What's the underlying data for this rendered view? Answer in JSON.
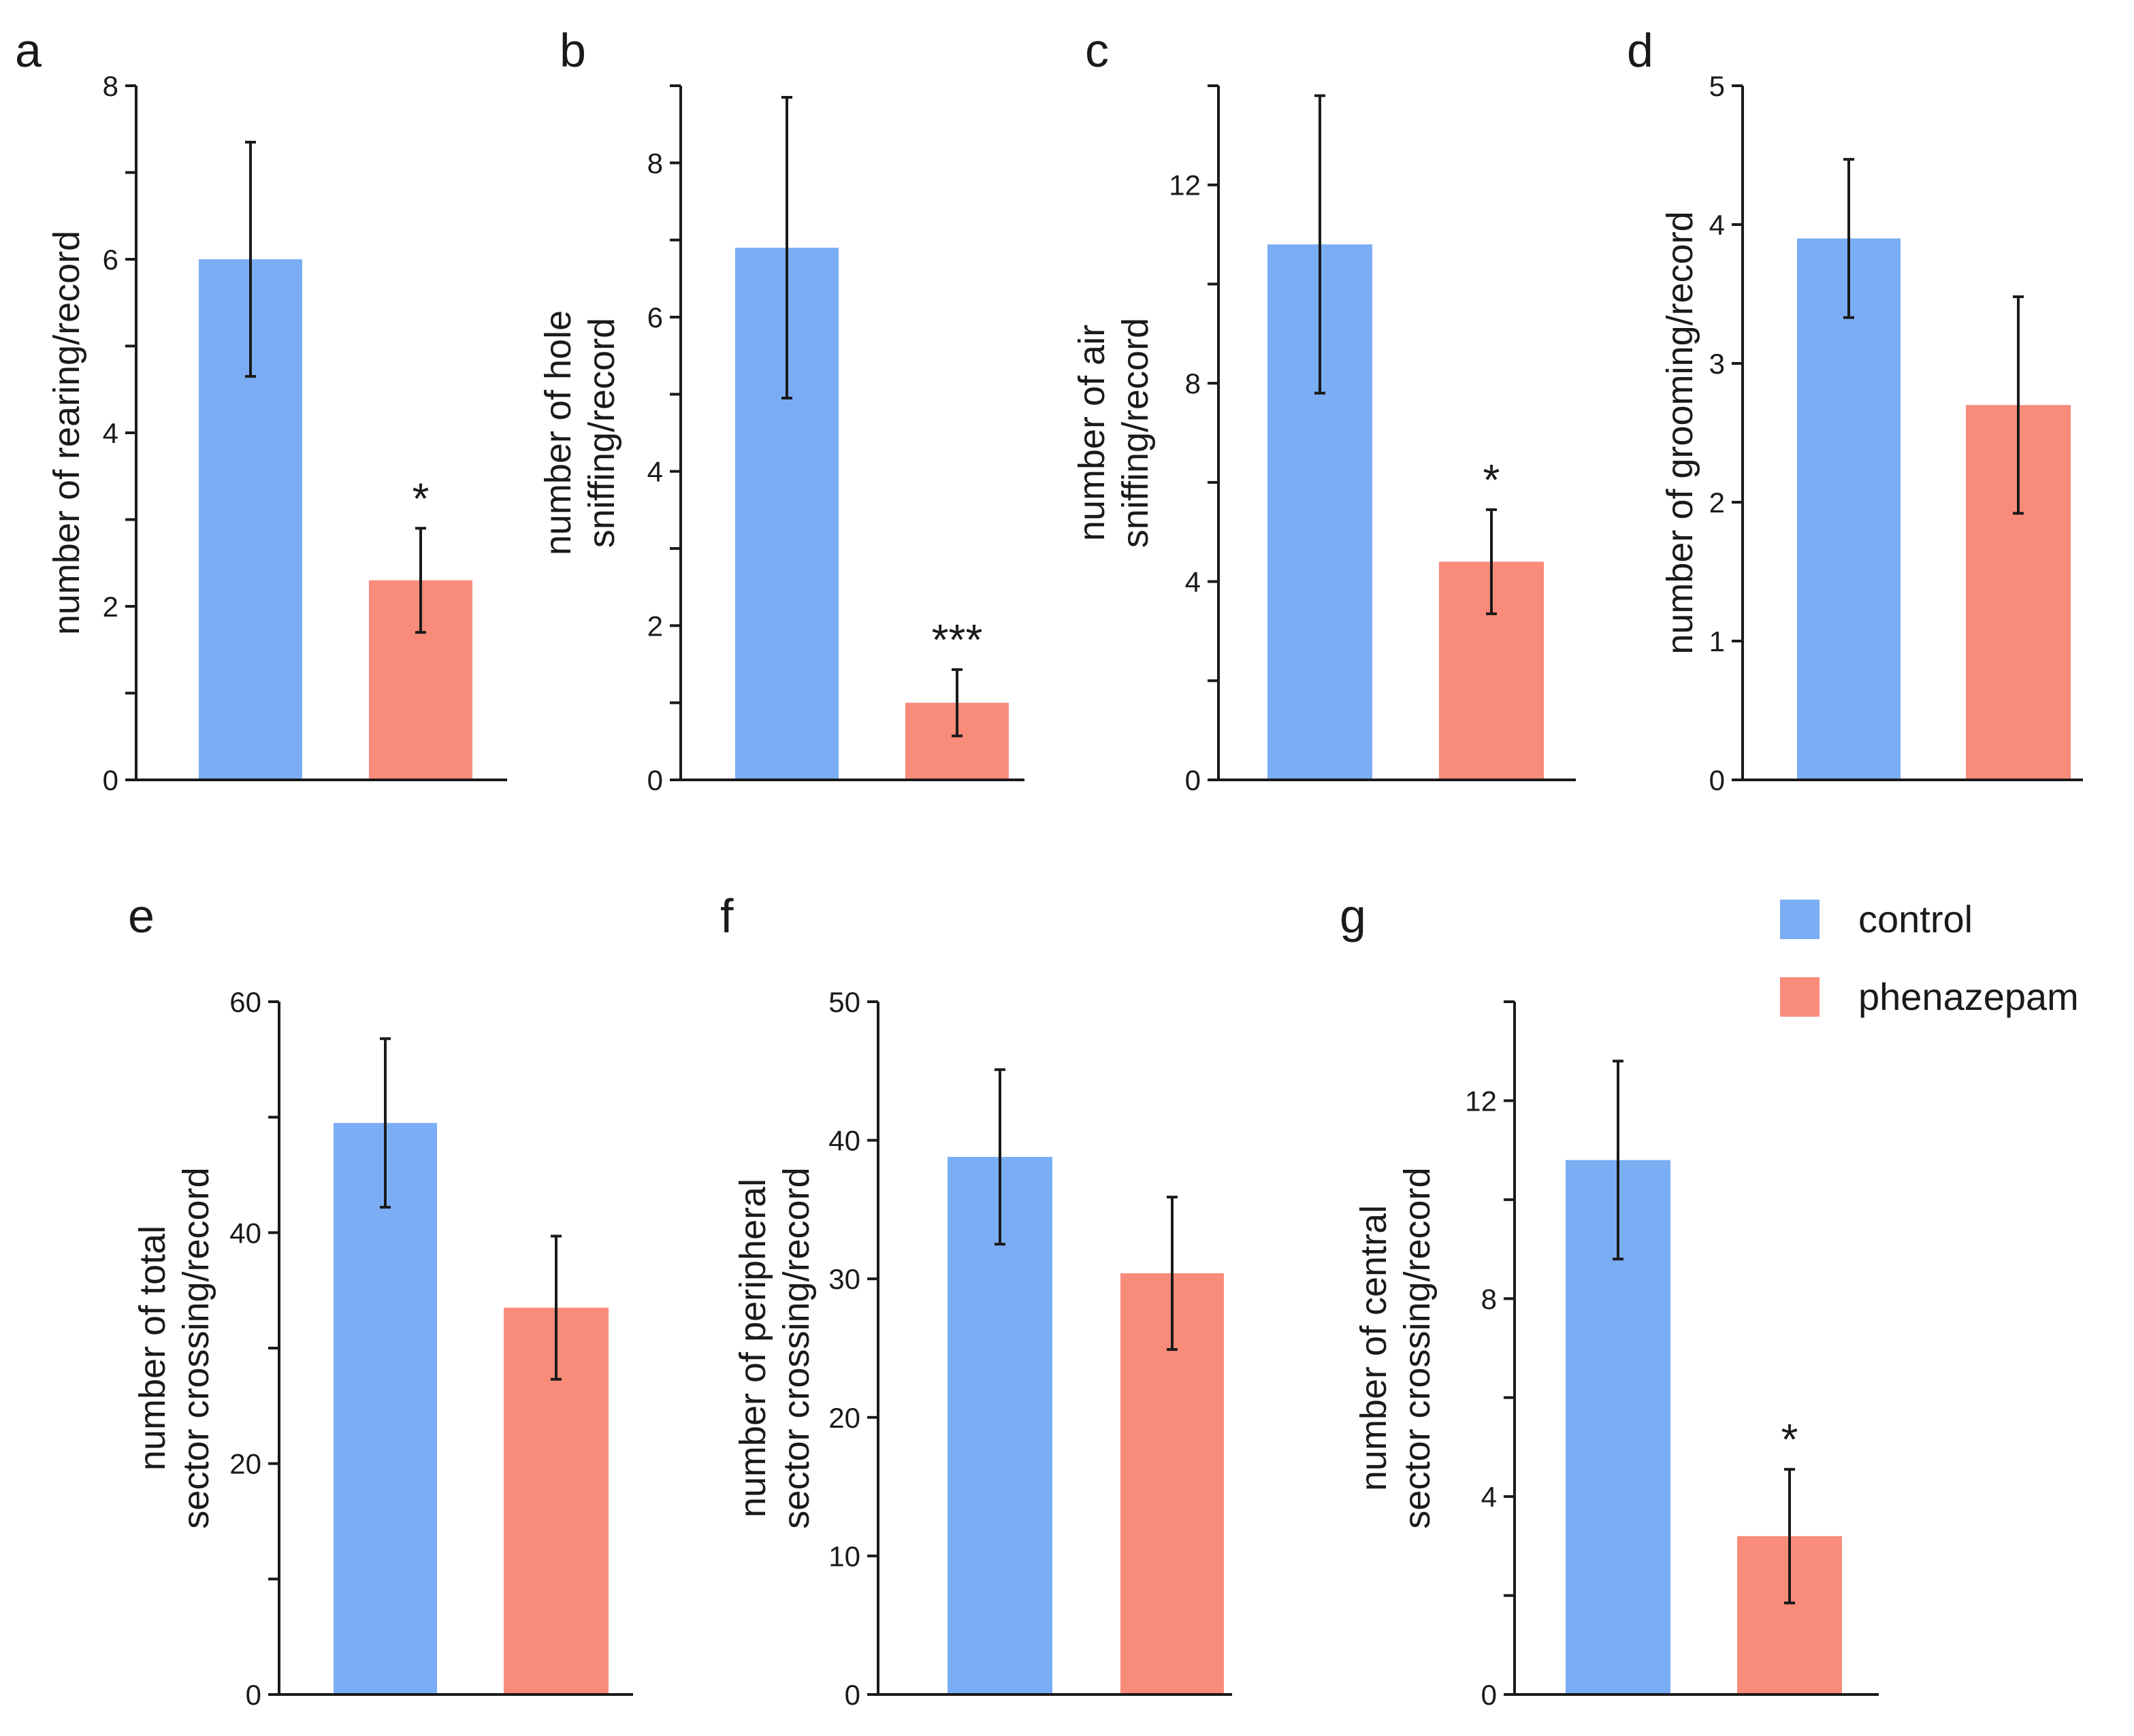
{
  "colors": {
    "control": "#7aadf4",
    "phenazepam": "#f98b7a",
    "axis": "#1a1a1a"
  },
  "legend": [
    {
      "key": "control",
      "label": "control"
    },
    {
      "key": "phenazepam",
      "label": "phenazepam"
    }
  ],
  "chart_data": [
    {
      "panel": "a",
      "type": "bar",
      "categories": [
        "control",
        "phenazepam"
      ],
      "values": [
        6.0,
        2.3
      ],
      "errors": [
        1.35,
        0.6
      ],
      "ylabel": [
        "number of rearing/record"
      ],
      "ylim": [
        0,
        8
      ],
      "major_ticks": [
        0,
        2,
        4,
        6,
        8
      ],
      "minor_ticks": [
        1,
        3,
        5,
        7
      ],
      "significance": [
        "",
        "*"
      ]
    },
    {
      "panel": "b",
      "type": "bar",
      "categories": [
        "control",
        "phenazepam"
      ],
      "values": [
        6.9,
        1.0
      ],
      "errors": [
        1.95,
        0.43
      ],
      "ylabel": [
        "number of hole",
        "sniffing/record"
      ],
      "ylim": [
        0,
        9
      ],
      "major_ticks": [
        0,
        2,
        4,
        6,
        8
      ],
      "minor_ticks": [
        1,
        3,
        5,
        7,
        9
      ],
      "significance": [
        "",
        "***"
      ]
    },
    {
      "panel": "c",
      "type": "bar",
      "categories": [
        "control",
        "phenazepam"
      ],
      "values": [
        10.8,
        4.4
      ],
      "errors": [
        3.0,
        1.05
      ],
      "ylabel": [
        "number of air",
        "sniffing/record"
      ],
      "ylim": [
        0,
        14
      ],
      "major_ticks": [
        0,
        4,
        8,
        12
      ],
      "minor_ticks": [
        2,
        6,
        10,
        14
      ],
      "significance": [
        "",
        "*"
      ]
    },
    {
      "panel": "d",
      "type": "bar",
      "categories": [
        "control",
        "phenazepam"
      ],
      "values": [
        3.9,
        2.7
      ],
      "errors": [
        0.57,
        0.78
      ],
      "ylabel": [
        "number of grooming/record"
      ],
      "ylim": [
        0,
        5
      ],
      "major_ticks": [
        0,
        1,
        2,
        3,
        4,
        5
      ],
      "minor_ticks": [],
      "significance": [
        "",
        ""
      ]
    },
    {
      "panel": "e",
      "type": "bar",
      "categories": [
        "control",
        "phenazepam"
      ],
      "values": [
        49.5,
        33.5
      ],
      "errors": [
        7.3,
        6.2
      ],
      "ylabel": [
        "number of total",
        "sector crossing/record"
      ],
      "ylim": [
        0,
        60
      ],
      "major_ticks": [
        0,
        20,
        40,
        60
      ],
      "minor_ticks": [
        10,
        30,
        50
      ],
      "significance": [
        "",
        ""
      ]
    },
    {
      "panel": "f",
      "type": "bar",
      "categories": [
        "control",
        "phenazepam"
      ],
      "values": [
        38.8,
        30.4
      ],
      "errors": [
        6.3,
        5.5
      ],
      "ylabel": [
        "number of peripheral",
        "sector crossing/record"
      ],
      "ylim": [
        0,
        50
      ],
      "major_ticks": [
        0,
        10,
        20,
        30,
        40,
        50
      ],
      "minor_ticks": [],
      "significance": [
        "",
        ""
      ]
    },
    {
      "panel": "g",
      "type": "bar",
      "categories": [
        "control",
        "phenazepam"
      ],
      "values": [
        10.8,
        3.2
      ],
      "errors": [
        2.0,
        1.35
      ],
      "ylabel": [
        "number of central",
        "sector crossing/record"
      ],
      "ylim": [
        0,
        14
      ],
      "major_ticks": [
        0,
        4,
        8,
        12
      ],
      "minor_ticks": [
        2,
        6,
        10,
        14
      ],
      "significance": [
        "",
        "*"
      ]
    }
  ]
}
